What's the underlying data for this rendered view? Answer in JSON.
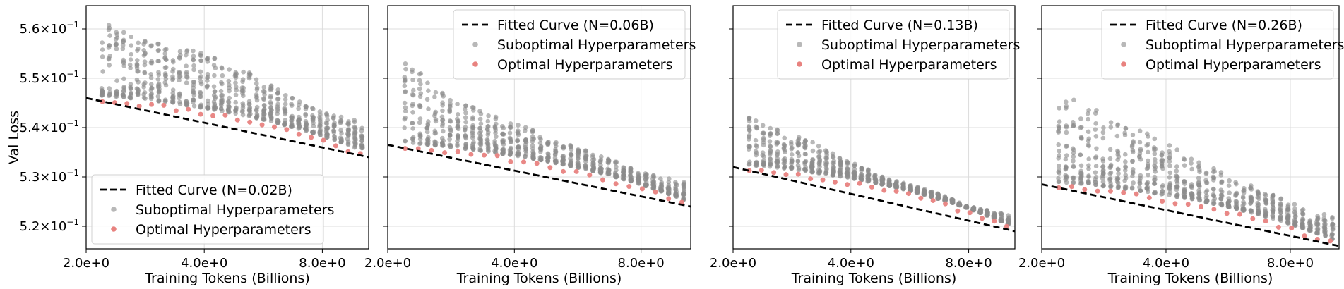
{
  "figure": {
    "ylabel": "Val Loss",
    "xlabel": "Training Tokens (Billions)",
    "x_ticks": [
      "2.0e+0",
      "4.0e+0",
      "8.0e+0"
    ],
    "y_ticks": [
      {
        "base": "5.6",
        "exp": "−1"
      },
      {
        "base": "5.5",
        "exp": "−1"
      },
      {
        "base": "5.4",
        "exp": "−1"
      },
      {
        "base": "5.3",
        "exp": "−1"
      },
      {
        "base": "5.2",
        "exp": "−1"
      }
    ]
  },
  "colors": {
    "suboptimal": "#8c8c8c",
    "optimal": "#e8827f",
    "fitted": "#000000",
    "grid": "#dcdcdc"
  },
  "chart_data": [
    {
      "type": "scatter",
      "xscale": "log",
      "yscale": "log",
      "xlim": [
        2.0,
        10.5
      ],
      "ylim": [
        0.5155,
        0.5645
      ],
      "xlabel": "Training Tokens (Billions)",
      "ylabel": "Val Loss",
      "legend_position": "bottom-left",
      "legend": [
        "Fitted Curve (N=0.02B)",
        "Suboptimal Hyperparameters",
        "Optimal Hyperparameters"
      ],
      "fitted_curve": {
        "x": [
          2.0,
          10.5
        ],
        "y": [
          0.546,
          0.534
        ]
      },
      "optimal": {
        "x": [
          2.2,
          10.0
        ],
        "y": [
          0.5448,
          0.5345
        ]
      },
      "suboptimal_max": {
        "x": [
          2.2,
          2.6,
          3.2,
          4.0,
          5.0,
          6.5,
          8.0,
          10.0
        ],
        "y": [
          0.563,
          0.5585,
          0.557,
          0.5555,
          0.552,
          0.5465,
          0.543,
          0.5415
        ]
      }
    },
    {
      "type": "scatter",
      "xscale": "log",
      "yscale": "log",
      "xlim": [
        2.0,
        10.5
      ],
      "ylim": [
        0.5155,
        0.5645
      ],
      "xlabel": "Training Tokens (Billions)",
      "legend_position": "top-right",
      "legend": [
        "Fitted Curve (N=0.06B)",
        "Suboptimal Hyperparameters",
        "Optimal Hyperparameters"
      ],
      "fitted_curve": {
        "x": [
          2.0,
          10.5
        ],
        "y": [
          0.5365,
          0.524
        ]
      },
      "optimal": {
        "x": [
          2.2,
          10.0
        ],
        "y": [
          0.536,
          0.5245
        ]
      },
      "suboptimal_max": {
        "x": [
          2.2,
          3.0,
          4.0,
          5.0,
          6.5,
          8.0,
          10.0
        ],
        "y": [
          0.553,
          0.545,
          0.541,
          0.5375,
          0.534,
          0.531,
          0.529
        ]
      }
    },
    {
      "type": "scatter",
      "xscale": "log",
      "yscale": "log",
      "xlim": [
        2.0,
        10.5
      ],
      "ylim": [
        0.5155,
        0.5645
      ],
      "xlabel": "Training Tokens (Billions)",
      "legend_position": "top-right",
      "legend": [
        "Fitted Curve (N=0.13B)",
        "Suboptimal Hyperparameters",
        "Optimal Hyperparameters"
      ],
      "fitted_curve": {
        "x": [
          2.0,
          10.5
        ],
        "y": [
          0.532,
          0.519
        ]
      },
      "optimal": {
        "x": [
          2.2,
          10.0
        ],
        "y": [
          0.5315,
          0.5195
        ]
      },
      "suboptimal_max": {
        "x": [
          2.2,
          3.0,
          4.0,
          5.0,
          6.5,
          8.0,
          10.0
        ],
        "y": [
          0.542,
          0.538,
          0.533,
          0.5295,
          0.527,
          0.524,
          0.5225
        ]
      }
    },
    {
      "type": "scatter",
      "xscale": "log",
      "yscale": "log",
      "xlim": [
        2.0,
        10.5
      ],
      "ylim": [
        0.5155,
        0.5645
      ],
      "xlabel": "Training Tokens (Billions)",
      "legend_position": "top-right",
      "legend": [
        "Fitted Curve (N=0.26B)",
        "Suboptimal Hyperparameters",
        "Optimal Hyperparameters"
      ],
      "fitted_curve": {
        "x": [
          2.0,
          10.5
        ],
        "y": [
          0.5285,
          0.516
        ]
      },
      "optimal": {
        "x": [
          2.2,
          10.0
        ],
        "y": [
          0.528,
          0.5165
        ]
      },
      "suboptimal_max": {
        "x": [
          2.2,
          3.0,
          4.0,
          5.0,
          6.5,
          8.0,
          10.0
        ],
        "y": [
          0.547,
          0.5415,
          0.537,
          0.5325,
          0.528,
          0.525,
          0.522
        ]
      }
    }
  ]
}
